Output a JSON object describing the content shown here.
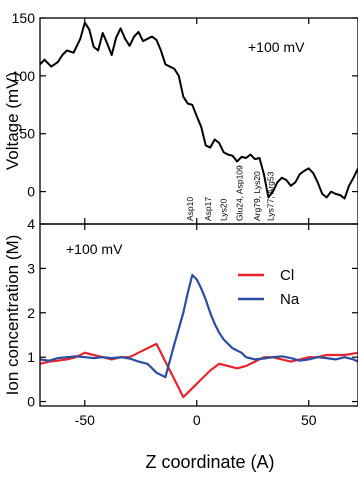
{
  "chart_data": [
    {
      "type": "line",
      "panel": "top",
      "annotation": "+100 mV",
      "ylabel": "Voltage (mV)",
      "xlabel": "",
      "xlim": [
        -70,
        72
      ],
      "ylim": [
        -28,
        150
      ],
      "yticks": [
        0,
        50,
        100,
        150
      ],
      "xticks": [
        -50,
        0,
        50
      ],
      "grid": false,
      "residue_labels": [
        {
          "x": -3,
          "text": "Asp10"
        },
        {
          "x": 5,
          "text": "Asp17"
        },
        {
          "x": 12,
          "text": "Lys20"
        },
        {
          "x": 19,
          "text": "Glu24, Asp109"
        },
        {
          "x": 27,
          "text": "Arg79, Lys20"
        },
        {
          "x": 33,
          "text": "Lys77, Arg53"
        }
      ],
      "series": [
        {
          "color": "#000000",
          "x": [
            -70,
            -68,
            -65,
            -62,
            -60,
            -58,
            -55,
            -52,
            -50,
            -48,
            -46,
            -44,
            -42,
            -40,
            -38,
            -36,
            -34,
            -32,
            -30,
            -28,
            -26,
            -24,
            -22,
            -20,
            -18,
            -16,
            -14,
            -12,
            -10,
            -8,
            -6,
            -4,
            -2,
            0,
            2,
            4,
            6,
            8,
            10,
            12,
            14,
            16,
            18,
            20,
            22,
            24,
            26,
            28,
            30,
            32,
            34,
            36,
            38,
            40,
            42,
            44,
            46,
            48,
            50,
            52,
            54,
            56,
            58,
            60,
            62,
            64,
            66,
            68,
            70,
            72
          ],
          "y": [
            110,
            114,
            108,
            112,
            118,
            122,
            120,
            132,
            146,
            140,
            125,
            122,
            137,
            128,
            118,
            133,
            141,
            132,
            126,
            134,
            138,
            130,
            132,
            134,
            131,
            122,
            110,
            108,
            106,
            100,
            82,
            76,
            75,
            65,
            56,
            40,
            38,
            45,
            42,
            34,
            32,
            31,
            26,
            30,
            29,
            32,
            28,
            29,
            15,
            -5,
            0,
            8,
            12,
            10,
            5,
            8,
            15,
            18,
            20,
            16,
            8,
            -2,
            -5,
            0,
            -2,
            -3,
            -6,
            5,
            12,
            20
          ]
        }
      ]
    },
    {
      "type": "line",
      "panel": "bottom",
      "annotation": "+100 mV",
      "ylabel": "Ion concentration (M)",
      "xlabel": "Z coordinate (A)",
      "xlim": [
        -70,
        72
      ],
      "ylim": [
        -0.1,
        4
      ],
      "yticks": [
        0,
        1,
        2,
        3,
        4
      ],
      "xticks": [
        -50,
        0,
        50
      ],
      "grid": false,
      "legend_position": "right",
      "series": [
        {
          "name": "Cl",
          "color": "#e8252d",
          "x": [
            -70,
            -66,
            -62,
            -58,
            -54,
            -50,
            -46,
            -42,
            -38,
            -34,
            -30,
            -26,
            -22,
            -18,
            -14,
            -10,
            -6,
            -2,
            2,
            6,
            10,
            14,
            18,
            22,
            26,
            30,
            34,
            38,
            42,
            46,
            50,
            54,
            58,
            62,
            66,
            70,
            72
          ],
          "y": [
            0.85,
            0.9,
            0.92,
            0.95,
            1.0,
            1.1,
            1.05,
            1.0,
            0.95,
            1.0,
            1.0,
            1.1,
            1.2,
            1.3,
            0.9,
            0.5,
            0.1,
            0.3,
            0.5,
            0.7,
            0.85,
            0.8,
            0.75,
            0.8,
            0.9,
            1.0,
            1.0,
            0.95,
            0.9,
            0.95,
            1.0,
            1.0,
            1.05,
            1.05,
            1.05,
            1.08,
            1.1
          ]
        },
        {
          "name": "Na",
          "color": "#2b4ea0",
          "x": [
            -70,
            -66,
            -62,
            -58,
            -54,
            -50,
            -46,
            -42,
            -38,
            -34,
            -30,
            -26,
            -22,
            -18,
            -14,
            -10,
            -6,
            -4,
            -2,
            0,
            2,
            4,
            6,
            8,
            10,
            12,
            14,
            16,
            18,
            20,
            22,
            26,
            30,
            34,
            38,
            42,
            46,
            50,
            54,
            58,
            62,
            66,
            70,
            72
          ],
          "y": [
            0.95,
            0.92,
            0.98,
            1.0,
            1.02,
            1.0,
            0.98,
            1.0,
            0.98,
            1.0,
            0.97,
            0.9,
            0.85,
            0.65,
            0.55,
            1.3,
            2.0,
            2.45,
            2.85,
            2.75,
            2.55,
            2.3,
            2.0,
            1.75,
            1.55,
            1.4,
            1.3,
            1.2,
            1.15,
            1.1,
            1.0,
            0.95,
            0.97,
            1.0,
            1.02,
            0.98,
            0.92,
            0.95,
            1.0,
            0.98,
            0.95,
            1.0,
            0.95,
            0.9
          ]
        }
      ]
    }
  ]
}
